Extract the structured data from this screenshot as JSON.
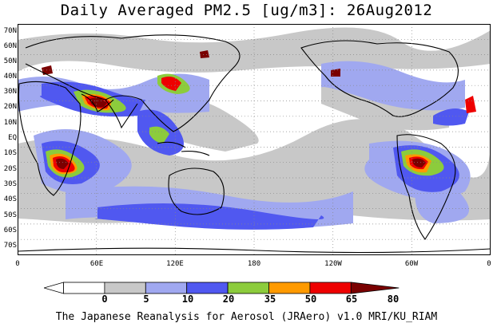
{
  "title": "Daily Averaged PM2.5 [ug/m3]: 26Aug2012",
  "lat_labels": [
    "70N",
    "60N",
    "50N",
    "40N",
    "30N",
    "20N",
    "10N",
    "EQ",
    "10S",
    "20S",
    "30S",
    "40S",
    "50S",
    "60S",
    "70S"
  ],
  "lon_labels": [
    "0",
    "60E",
    "120E",
    "180",
    "120W",
    "60W",
    "0"
  ],
  "colorbar": {
    "labels": [
      "0",
      "5",
      "10",
      "20",
      "35",
      "50",
      "65",
      "80"
    ],
    "colors": [
      "#ffffff",
      "#c8c8c8",
      "#a0a8f0",
      "#5058f0",
      "#8ccc3c",
      "#ff9a00",
      "#ee0000",
      "#7a0000"
    ]
  },
  "credit": "The Japanese Reanalysis for Aerosol (JRAero) v1.0 MRI/KU_RIAM"
}
